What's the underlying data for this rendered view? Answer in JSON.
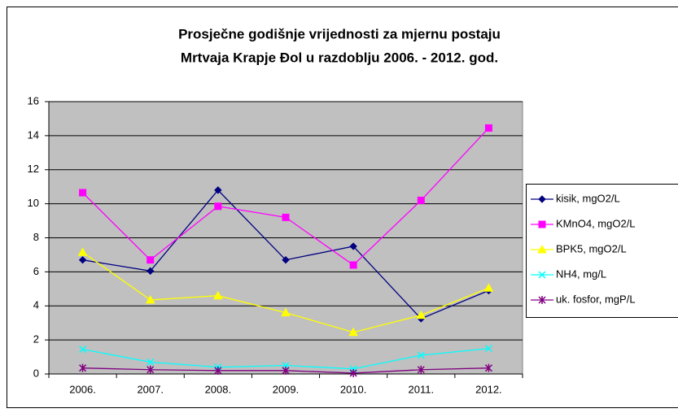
{
  "chart_data": {
    "type": "line",
    "title": [
      "Prosječne godišnje vrijednosti za mjernu postaju",
      "Mrtvaja Krapje Đol u razdoblju 2006. - 2012. god."
    ],
    "categories": [
      "2006.",
      "2007.",
      "2008.",
      "2009.",
      "2010.",
      "2011.",
      "2012."
    ],
    "series": [
      {
        "name": "kisik, mgO2/L",
        "color": "#000080",
        "marker": "diamond",
        "values": [
          6.7,
          6.05,
          10.8,
          6.7,
          7.5,
          3.25,
          4.9
        ]
      },
      {
        "name": "KMnO4, mgO2/L",
        "color": "#ff00ff",
        "marker": "square",
        "values": [
          10.65,
          6.7,
          9.85,
          9.2,
          6.4,
          10.2,
          14.45
        ]
      },
      {
        "name": "BPK5, mgO2/L",
        "color": "#ffff00",
        "marker": "triangle",
        "values": [
          7.15,
          4.35,
          4.6,
          3.6,
          2.45,
          3.45,
          5.05
        ]
      },
      {
        "name": "NH4, mg/L",
        "color": "#00ffff",
        "marker": "x",
        "values": [
          1.45,
          0.7,
          0.4,
          0.5,
          0.3,
          1.1,
          1.5
        ]
      },
      {
        "name": "uk. fosfor, mgP/L",
        "color": "#800080",
        "marker": "star",
        "values": [
          0.35,
          0.25,
          0.2,
          0.2,
          0.05,
          0.25,
          0.35
        ]
      }
    ],
    "ylim": [
      0,
      16
    ],
    "yticks": [
      0,
      2,
      4,
      6,
      8,
      10,
      12,
      14,
      16
    ],
    "grid": true,
    "legend": "right"
  }
}
